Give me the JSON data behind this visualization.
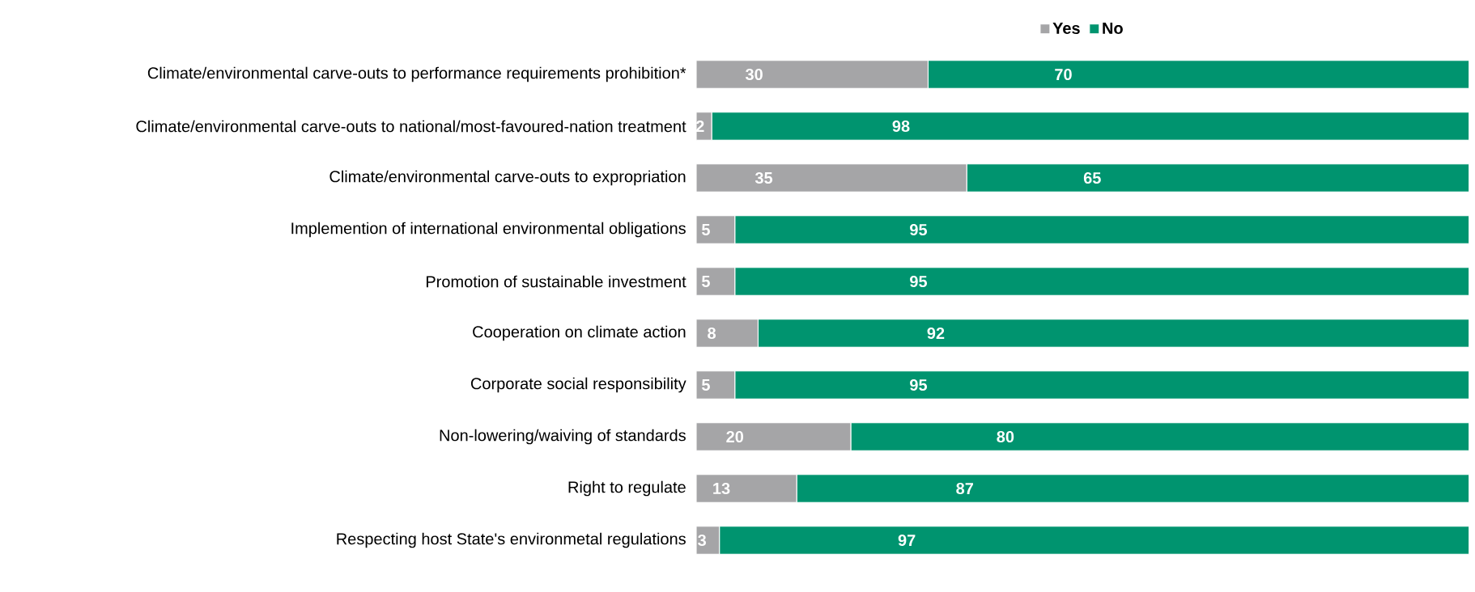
{
  "chart_data": {
    "type": "bar",
    "orientation": "horizontal",
    "stacked": true,
    "legend": "top",
    "tick_labels": "y",
    "data_labels": true,
    "xlim": [
      0,
      100
    ],
    "categories": [
      "Climate/environmental carve-outs to performance requirements prohibition*",
      "Climate/environmental carve-outs to national/most-favoured-nation treatment",
      "Climate/environmental carve-outs to expropriation",
      "Implemention of international environmental obligations",
      "Promotion of sustainable investment",
      "Cooperation on climate action",
      "Corporate social responsibility",
      "Non-lowering/waiving of standards",
      "Right to regulate",
      "Respecting host State's environmetal regulations"
    ],
    "series": [
      {
        "name": "Yes",
        "color": "#a5a5a7",
        "values": [
          30,
          2,
          35,
          5,
          5,
          8,
          5,
          20,
          13,
          3
        ]
      },
      {
        "name": "No",
        "color": "#00946f",
        "values": [
          70,
          98,
          65,
          95,
          95,
          92,
          95,
          80,
          87,
          97
        ]
      }
    ]
  }
}
